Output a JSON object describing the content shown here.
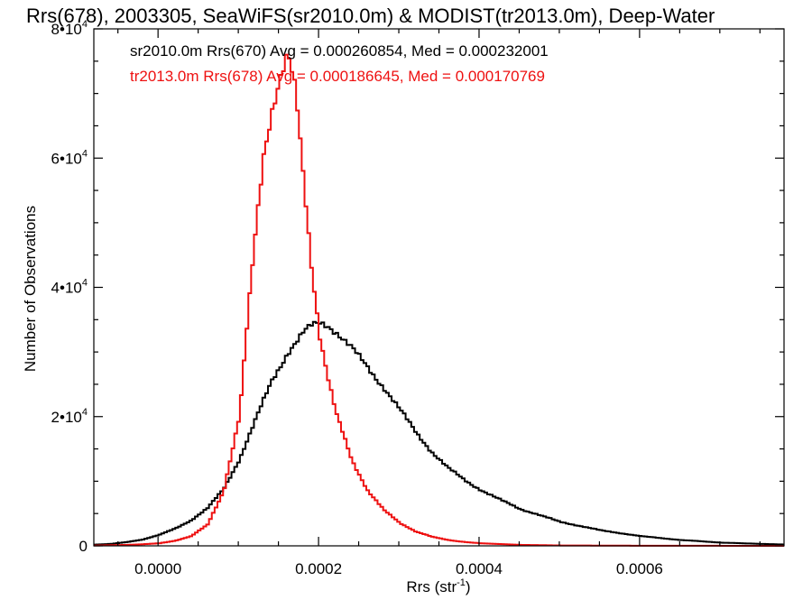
{
  "chart_data": {
    "type": "line",
    "title": "Rrs(678), 2003305, SeaWiFS(sr2010.0m) & MODIST(tr2013.0m), Deep-Water",
    "xlabel": "Rrs (str",
    "xlabel_sup": "-1",
    "xlabel_end": ")",
    "ylabel": "Number of Observations",
    "xlim": [
      -8e-05,
      0.00078
    ],
    "ylim": [
      0,
      80000
    ],
    "xticks": [
      {
        "value": 0.0,
        "label": "0.0000"
      },
      {
        "value": 0.0002,
        "label": "0.0002"
      },
      {
        "value": 0.0004,
        "label": "0.0004"
      },
      {
        "value": 0.0006,
        "label": "0.0006"
      }
    ],
    "yticks": [
      {
        "value": 0,
        "label": "0",
        "exp": ""
      },
      {
        "value": 20000,
        "label": "2•10",
        "exp": "4"
      },
      {
        "value": 40000,
        "label": "4•10",
        "exp": "4"
      },
      {
        "value": 60000,
        "label": "6•10",
        "exp": "4"
      },
      {
        "value": 80000,
        "label": "8•10",
        "exp": "4"
      }
    ],
    "grid": false,
    "legend_position": "top-left",
    "series": [
      {
        "name": "sr2010.0m Rrs(670)",
        "legend": "sr2010.0m Rrs(670) Avg = 0.000260854, Med = 0.000232001",
        "color": "#000000",
        "x": [
          -8e-05,
          -6e-05,
          -4e-05,
          -2e-05,
          0.0,
          2e-05,
          4e-05,
          6e-05,
          8e-05,
          0.0001,
          0.00012,
          0.00014,
          0.00016,
          0.00017,
          0.00018,
          0.00019,
          0.0002,
          0.00021,
          0.00022,
          0.00024,
          0.00026,
          0.00028,
          0.0003,
          0.00032,
          0.00034,
          0.00036,
          0.00038,
          0.0004,
          0.00042,
          0.00045,
          0.0005,
          0.00055,
          0.0006,
          0.00065,
          0.0007,
          0.00075,
          0.00078
        ],
        "values": [
          200,
          300,
          600,
          1000,
          1700,
          2700,
          4000,
          5800,
          8800,
          13500,
          19500,
          25500,
          30000,
          31500,
          33000,
          34000,
          34500,
          34200,
          33200,
          30500,
          27500,
          24500,
          21000,
          17500,
          14500,
          12000,
          10200,
          8700,
          7400,
          5700,
          3700,
          2400,
          1500,
          900,
          500,
          300,
          200
        ]
      },
      {
        "name": "tr2013.0m Rrs(678)",
        "legend": "tr2013.0m Rrs(678) Avg = 0.000186645, Med = 0.000170769",
        "color": "#ee1111",
        "x": [
          -8e-05,
          -6e-05,
          -4e-05,
          -2e-05,
          0.0,
          2e-05,
          4e-05,
          6e-05,
          8e-05,
          0.0001,
          0.00011,
          0.00012,
          0.00013,
          0.00014,
          0.00015,
          0.00016,
          0.00017,
          0.00018,
          0.00019,
          0.0002,
          0.00021,
          0.00022,
          0.00024,
          0.00026,
          0.00028,
          0.0003,
          0.00032,
          0.00034,
          0.00036,
          0.00038,
          0.0004,
          0.00045,
          0.0005,
          0.0006,
          0.00078
        ],
        "values": [
          50,
          100,
          150,
          250,
          400,
          800,
          1500,
          3300,
          8500,
          20000,
          35000,
          49000,
          61000,
          67500,
          72000,
          75500,
          70000,
          56500,
          43000,
          32500,
          26000,
          20500,
          13200,
          8500,
          5500,
          3500,
          2200,
          1400,
          900,
          600,
          400,
          150,
          60,
          20,
          0
        ]
      }
    ]
  }
}
